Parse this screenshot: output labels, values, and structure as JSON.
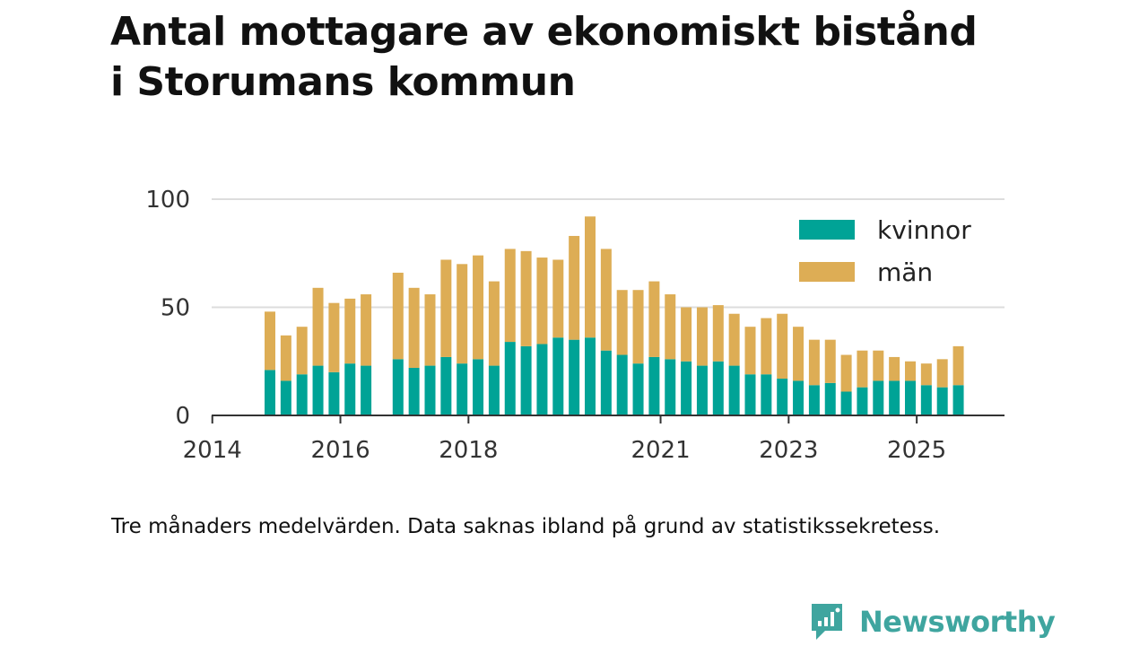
{
  "title": {
    "line1": "Antal mottagare av ekonomiskt bistånd",
    "line2": "i Storumans kommun"
  },
  "caption": "Tre månaders medelvärden. Data saknas ibland på grund av statistikssekretess.",
  "brand": {
    "name": "Newsworthy",
    "icon": "newsworthy-logo-icon",
    "color": "#3fa59f"
  },
  "chart_data": {
    "type": "bar",
    "stacked": true,
    "title": "",
    "xlabel": "",
    "ylabel": "",
    "ylim": [
      0,
      100
    ],
    "y_ticks": [
      0,
      50,
      100
    ],
    "x_ticks": [
      "2014",
      "2016",
      "2018",
      "2021",
      "2023",
      "2025"
    ],
    "grid": true,
    "legend_position": "top-right",
    "categories": [
      "2014 Q3",
      "2014 Q4",
      "2015 Q1",
      "2015 Q2",
      "2015 Q3",
      "2015 Q4",
      "2016 Q1",
      "2016 Q2",
      "2016 Q3",
      "2016 Q4",
      "2017 Q1",
      "2017 Q2",
      "2017 Q3",
      "2017 Q4",
      "2018 Q1",
      "2018 Q2",
      "2018 Q3",
      "2018 Q4",
      "2019 Q1",
      "2019 Q2",
      "2019 Q3",
      "2019 Q4",
      "2020 Q1",
      "2020 Q2",
      "2020 Q3",
      "2020 Q4",
      "2021 Q1",
      "2021 Q2",
      "2021 Q3",
      "2021 Q4",
      "2022 Q1",
      "2022 Q2",
      "2022 Q3",
      "2022 Q4",
      "2023 Q1",
      "2023 Q2",
      "2023 Q3",
      "2023 Q4",
      "2024 Q1",
      "2024 Q2",
      "2024 Q3",
      "2024 Q4",
      "2025 Q1",
      "2025 Q2"
    ],
    "series": [
      {
        "name": "kvinnor",
        "color": "#00a396",
        "values": [
          21,
          16,
          19,
          23,
          20,
          24,
          23,
          null,
          26,
          22,
          23,
          27,
          24,
          26,
          23,
          34,
          32,
          33,
          36,
          35,
          36,
          30,
          28,
          24,
          27,
          26,
          25,
          23,
          25,
          23,
          19,
          19,
          17,
          16,
          14,
          15,
          11,
          13,
          16,
          16,
          16,
          14,
          13,
          14
        ]
      },
      {
        "name": "män",
        "color": "#ddad55",
        "values": [
          27,
          21,
          22,
          36,
          32,
          30,
          33,
          null,
          40,
          37,
          33,
          45,
          46,
          48,
          39,
          43,
          44,
          40,
          36,
          48,
          56,
          47,
          30,
          34,
          35,
          30,
          25,
          27,
          26,
          24,
          22,
          26,
          30,
          25,
          21,
          20,
          17,
          17,
          14,
          11,
          9,
          10,
          13,
          18
        ]
      }
    ]
  }
}
